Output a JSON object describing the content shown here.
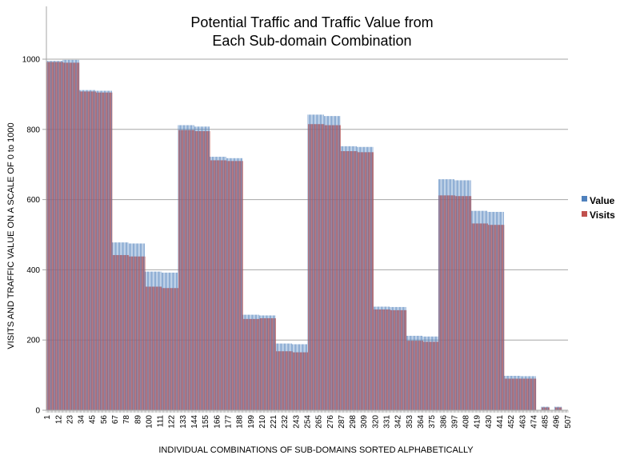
{
  "chart_data": {
    "type": "bar",
    "title": [
      "Potential Traffic and Traffic Value from",
      "Each Sub-domain Combination"
    ],
    "xlabel": "INDIVIDUAL COMBINATIONS OF SUB-DOMAINS SORTED ALPHABETICALLY",
    "ylabel": "VISITS AND TRAFFIC VALUE ON A SCALE OF 0 to 1000",
    "x_range": [
      1,
      507
    ],
    "ylim": [
      0,
      1000
    ],
    "yticks": [
      "0",
      "200",
      "400",
      "600",
      "800",
      "1000"
    ],
    "xticks": [
      "1",
      "12",
      "23",
      "34",
      "45",
      "56",
      "67",
      "78",
      "89",
      "100",
      "111",
      "122",
      "133",
      "144",
      "155",
      "166",
      "177",
      "188",
      "199",
      "210",
      "221",
      "232",
      "243",
      "254",
      "265",
      "276",
      "287",
      "298",
      "309",
      "320",
      "331",
      "342",
      "353",
      "364",
      "375",
      "386",
      "397",
      "408",
      "419",
      "430",
      "441",
      "452",
      "463",
      "474",
      "485",
      "496",
      "507"
    ],
    "grid": true,
    "legend_position": "right",
    "series": [
      {
        "name": "Value",
        "color": "#4F81BD",
        "segments": [
          {
            "from": 1,
            "to": 16,
            "y": 995
          },
          {
            "from": 17,
            "to": 32,
            "y": 998
          },
          {
            "from": 33,
            "to": 48,
            "y": 912
          },
          {
            "from": 49,
            "to": 64,
            "y": 910
          },
          {
            "from": 65,
            "to": 80,
            "y": 478
          },
          {
            "from": 81,
            "to": 96,
            "y": 475
          },
          {
            "from": 97,
            "to": 112,
            "y": 395
          },
          {
            "from": 113,
            "to": 128,
            "y": 392
          },
          {
            "from": 129,
            "to": 144,
            "y": 812
          },
          {
            "from": 145,
            "to": 159,
            "y": 808
          },
          {
            "from": 160,
            "to": 175,
            "y": 722
          },
          {
            "from": 176,
            "to": 191,
            "y": 718
          },
          {
            "from": 192,
            "to": 207,
            "y": 272
          },
          {
            "from": 208,
            "to": 223,
            "y": 270
          },
          {
            "from": 224,
            "to": 239,
            "y": 190
          },
          {
            "from": 240,
            "to": 254,
            "y": 188
          },
          {
            "from": 255,
            "to": 270,
            "y": 842
          },
          {
            "from": 271,
            "to": 286,
            "y": 838
          },
          {
            "from": 287,
            "to": 302,
            "y": 752
          },
          {
            "from": 303,
            "to": 318,
            "y": 750
          },
          {
            "from": 319,
            "to": 334,
            "y": 295
          },
          {
            "from": 335,
            "to": 350,
            "y": 294
          },
          {
            "from": 351,
            "to": 366,
            "y": 212
          },
          {
            "from": 367,
            "to": 381,
            "y": 210
          },
          {
            "from": 382,
            "to": 397,
            "y": 658
          },
          {
            "from": 398,
            "to": 413,
            "y": 655
          },
          {
            "from": 414,
            "to": 429,
            "y": 568
          },
          {
            "from": 430,
            "to": 445,
            "y": 565
          },
          {
            "from": 446,
            "to": 461,
            "y": 98
          },
          {
            "from": 462,
            "to": 476,
            "y": 97
          },
          {
            "from": 482,
            "to": 489,
            "y": 10
          },
          {
            "from": 495,
            "to": 501,
            "y": 10
          }
        ]
      },
      {
        "name": "Visits",
        "color": "#C0504D",
        "segments": [
          {
            "from": 1,
            "to": 16,
            "y": 992
          },
          {
            "from": 17,
            "to": 32,
            "y": 990
          },
          {
            "from": 33,
            "to": 48,
            "y": 908
          },
          {
            "from": 49,
            "to": 64,
            "y": 905
          },
          {
            "from": 65,
            "to": 80,
            "y": 442
          },
          {
            "from": 81,
            "to": 96,
            "y": 438
          },
          {
            "from": 97,
            "to": 112,
            "y": 352
          },
          {
            "from": 113,
            "to": 128,
            "y": 348
          },
          {
            "from": 129,
            "to": 144,
            "y": 798
          },
          {
            "from": 145,
            "to": 159,
            "y": 795
          },
          {
            "from": 160,
            "to": 175,
            "y": 712
          },
          {
            "from": 176,
            "to": 191,
            "y": 710
          },
          {
            "from": 192,
            "to": 207,
            "y": 260
          },
          {
            "from": 208,
            "to": 223,
            "y": 262
          },
          {
            "from": 224,
            "to": 239,
            "y": 168
          },
          {
            "from": 240,
            "to": 254,
            "y": 165
          },
          {
            "from": 255,
            "to": 270,
            "y": 815
          },
          {
            "from": 271,
            "to": 286,
            "y": 812
          },
          {
            "from": 287,
            "to": 302,
            "y": 738
          },
          {
            "from": 303,
            "to": 318,
            "y": 735
          },
          {
            "from": 319,
            "to": 334,
            "y": 287
          },
          {
            "from": 335,
            "to": 350,
            "y": 285
          },
          {
            "from": 351,
            "to": 366,
            "y": 198
          },
          {
            "from": 367,
            "to": 381,
            "y": 195
          },
          {
            "from": 382,
            "to": 397,
            "y": 612
          },
          {
            "from": 398,
            "to": 413,
            "y": 610
          },
          {
            "from": 414,
            "to": 429,
            "y": 532
          },
          {
            "from": 430,
            "to": 445,
            "y": 528
          },
          {
            "from": 446,
            "to": 461,
            "y": 90
          },
          {
            "from": 462,
            "to": 476,
            "y": 90
          },
          {
            "from": 482,
            "to": 489,
            "y": 8
          },
          {
            "from": 495,
            "to": 501,
            "y": 8
          }
        ]
      }
    ]
  }
}
